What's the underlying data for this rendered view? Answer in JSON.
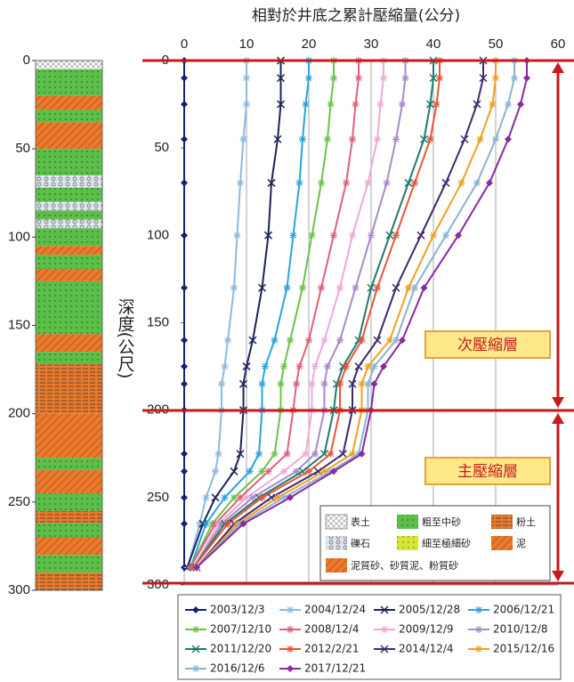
{
  "chart_data": {
    "type": "line",
    "title": "相對於井底之累計壓縮量(公分)",
    "y_label": "深度(公尺)",
    "annotations": [
      "次壓縮層",
      "主壓縮層"
    ],
    "xlim": [
      0,
      60
    ],
    "xticks": [
      0,
      10,
      20,
      30,
      40,
      50,
      60
    ],
    "ylim": [
      0,
      300
    ],
    "yticks": [
      0,
      50,
      100,
      150,
      200,
      250,
      300
    ],
    "y_inverted": true,
    "grid": true,
    "y": [
      0,
      10,
      25,
      45,
      70,
      100,
      130,
      160,
      175,
      185,
      200,
      225,
      235,
      250,
      265,
      290
    ],
    "series": [
      {
        "name": "2003/12/3",
        "color": "#1a1f6e",
        "marker": "diamond",
        "values": [
          0,
          0,
          0,
          0,
          0,
          0,
          0,
          0,
          0,
          0,
          0,
          0,
          0,
          0,
          0,
          0
        ]
      },
      {
        "name": "2004/12/24",
        "color": "#8fb8e0",
        "marker": "star",
        "values": [
          10,
          10,
          10,
          9.5,
          9,
          8.5,
          8,
          7,
          6.5,
          6,
          6,
          5.5,
          5,
          3.5,
          2.5,
          0.5
        ]
      },
      {
        "name": "2005/12/28",
        "color": "#1c2456",
        "marker": "x",
        "values": [
          15.5,
          15.5,
          15.5,
          15,
          14,
          13.5,
          12.5,
          11,
          10,
          9.5,
          9.5,
          9,
          8,
          5,
          3,
          0.5
        ]
      },
      {
        "name": "2006/12/21",
        "color": "#2aa3e0",
        "marker": "star",
        "values": [
          20,
          20,
          19.5,
          19,
          18.5,
          17.5,
          16.5,
          14.5,
          13,
          12.5,
          12.5,
          12,
          10.5,
          6.5,
          3.5,
          1
        ]
      },
      {
        "name": "2007/12/10",
        "color": "#6cc24a",
        "marker": "star",
        "values": [
          24,
          24,
          23.5,
          23,
          22,
          20.5,
          19,
          17,
          16,
          15.5,
          15.5,
          14.5,
          12.5,
          8,
          4.5,
          1
        ]
      },
      {
        "name": "2008/12/4",
        "color": "#e0607a",
        "marker": "star",
        "values": [
          28,
          28,
          27.5,
          27,
          26,
          24,
          22,
          20,
          18.5,
          18,
          17.5,
          16.5,
          13.5,
          9,
          5,
          1
        ]
      },
      {
        "name": "2009/12/9",
        "color": "#f0a8d8",
        "marker": "star",
        "values": [
          32,
          32,
          31.5,
          31,
          29.5,
          27,
          25,
          22.5,
          21,
          20.5,
          20.5,
          19.5,
          16,
          10,
          5.5,
          1.5
        ]
      },
      {
        "name": "2010/12/8",
        "color": "#a88ac8",
        "marker": "star",
        "values": [
          35.5,
          35.5,
          35,
          34,
          32.5,
          30,
          27.5,
          25,
          23,
          22.5,
          22.5,
          21,
          18,
          11,
          6,
          1.5
        ]
      },
      {
        "name": "2011/12/20",
        "color": "#1f7a6e",
        "marker": "x",
        "values": [
          40,
          40,
          39.5,
          38.5,
          36,
          33,
          30,
          28,
          25.5,
          24.5,
          24,
          22.5,
          19,
          12,
          6.5,
          1.5
        ]
      },
      {
        "name": "2012/2/21",
        "color": "#e8553a",
        "marker": "star",
        "values": [
          41,
          41,
          40.5,
          39.5,
          37,
          34,
          31,
          28.5,
          26,
          25,
          25,
          23.5,
          20,
          12.5,
          7,
          1.5
        ]
      },
      {
        "name": "2014/12/4",
        "color": "#3b2a6e",
        "marker": "x",
        "values": [
          48,
          48,
          47,
          45,
          42,
          38,
          34,
          31,
          28,
          27,
          27,
          25.5,
          21.5,
          14,
          8,
          2
        ]
      },
      {
        "name": "2015/12/16",
        "color": "#f0a020",
        "marker": "star",
        "values": [
          50,
          50,
          49.5,
          47.5,
          44.5,
          40,
          36,
          33,
          29.5,
          28.5,
          28.5,
          27,
          22.5,
          15,
          8.5,
          2
        ]
      },
      {
        "name": "2016/12/6",
        "color": "#8ab4d0",
        "marker": "star",
        "values": [
          53,
          53,
          52,
          50,
          47,
          42,
          37,
          34,
          30.5,
          29.5,
          29.5,
          28,
          23.5,
          16,
          9,
          2
        ]
      },
      {
        "name": "2017/12/21",
        "color": "#8a2aa0",
        "marker": "diamond",
        "values": [
          55,
          55,
          54,
          52,
          49,
          44,
          38.5,
          35,
          32,
          30.5,
          30,
          28.5,
          24,
          17,
          9.5,
          2
        ]
      }
    ]
  },
  "strata": {
    "depth_ticks": [
      0,
      50,
      100,
      150,
      200,
      250,
      300
    ],
    "legend": [
      "表土",
      "粗至中砂",
      "粉土",
      "礫石",
      "細至極細砂",
      "泥",
      "泥質砂、砂質泥、粉質砂"
    ]
  }
}
